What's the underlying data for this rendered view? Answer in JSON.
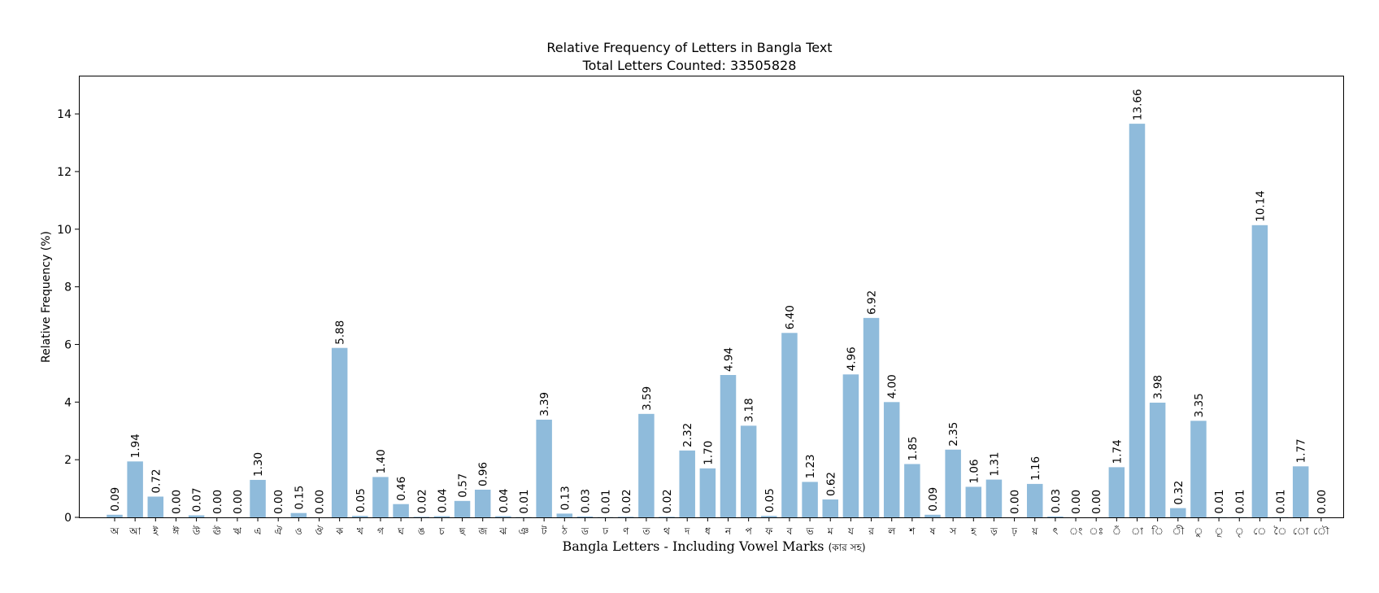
{
  "chart_data": {
    "type": "bar",
    "title": "Relative Frequency of Letters in Bangla Text",
    "subtitle": "Total Letters Counted: 33505828",
    "xlabel": "Bangla Letters - Including Vowel Marks",
    "xlabel_note": "(কার সহ)",
    "ylabel": "Relative Frequency (%)",
    "ylim": [
      0,
      15.3
    ],
    "yticks": [
      0,
      2,
      4,
      6,
      8,
      10,
      12,
      14
    ],
    "grid": false,
    "bar_color": "#8fbbdb",
    "categories": [
      "অ",
      "আ",
      "ই",
      "ঈ",
      "উ",
      "ঊ",
      "ঋ",
      "এ",
      "ঐ",
      "ও",
      "ঔ",
      "ক",
      "খ",
      "গ",
      "ঘ",
      "ঙ",
      "চ",
      "ছ",
      "জ",
      "ঝ",
      "ঞ",
      "ট",
      "ঠ",
      "ড",
      "ঢ",
      "ণ",
      "ত",
      "থ",
      "দ",
      "ধ",
      "ন",
      "প",
      "ফ",
      "ব",
      "ভ",
      "ম",
      "য",
      "র",
      "ল",
      "শ",
      "ষ",
      "স",
      "হ",
      "ড়",
      "ঢ়",
      "য়",
      "ৎ",
      "ং",
      "ঃ",
      "ঁ",
      "া",
      "ি",
      "ী",
      "ু",
      "ূ",
      "ৃ",
      "ে",
      "ৈ",
      "ো",
      "ৌ"
    ],
    "values": [
      0.09,
      1.94,
      0.72,
      0.0,
      0.07,
      0.0,
      0.0,
      1.3,
      0.0,
      0.15,
      0.0,
      5.88,
      0.05,
      1.4,
      0.46,
      0.02,
      0.04,
      0.57,
      0.96,
      0.04,
      0.01,
      3.39,
      0.13,
      0.03,
      0.01,
      0.02,
      3.59,
      0.02,
      2.32,
      1.7,
      4.94,
      3.18,
      0.05,
      6.4,
      1.23,
      0.62,
      4.96,
      6.92,
      4.0,
      1.85,
      0.09,
      2.35,
      1.06,
      1.31,
      0.0,
      1.16,
      0.03,
      0.0,
      0.0,
      1.74,
      13.66,
      3.98,
      0.32,
      3.35,
      0.01,
      0.01,
      10.14,
      0.01,
      1.77,
      0.0
    ],
    "value_labels": [
      "0.09",
      "1.94",
      "0.72",
      "0.00",
      "0.07",
      "0.00",
      "0.00",
      "1.30",
      "0.00",
      "0.15",
      "0.00",
      "5.88",
      "0.05",
      "1.40",
      "0.46",
      "0.02",
      "0.04",
      "0.57",
      "0.96",
      "0.04",
      "0.01",
      "3.39",
      "0.13",
      "0.03",
      "0.01",
      "0.02",
      "3.59",
      "0.02",
      "2.32",
      "1.70",
      "4.94",
      "3.18",
      "0.05",
      "6.40",
      "1.23",
      "0.62",
      "4.96",
      "6.92",
      "4.00",
      "1.85",
      "0.09",
      "2.35",
      "1.06",
      "1.31",
      "0.00",
      "1.16",
      "0.03",
      "0.00",
      "0.00",
      "1.74",
      "13.66",
      "3.98",
      "0.32",
      "3.35",
      "0.01",
      "0.01",
      "10.14",
      "0.01",
      "1.77",
      "0.00"
    ]
  }
}
